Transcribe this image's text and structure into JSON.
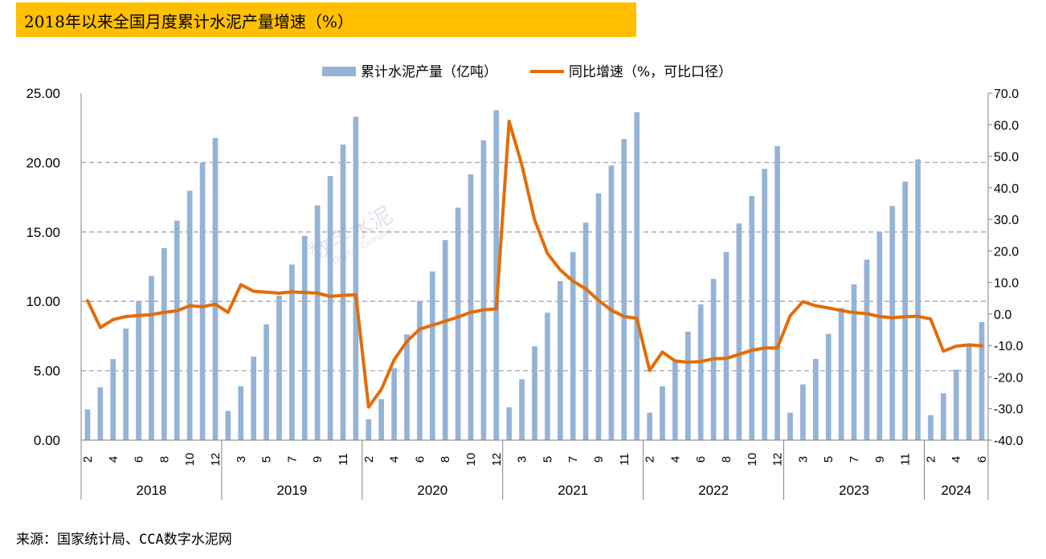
{
  "title": "2018年以来全国月度累计水泥产量增速（%）",
  "source": "来源：国家统计局、CCA数字水泥网",
  "watermark": {
    "main": "数字水泥",
    "sub": "Digital Cement"
  },
  "colors": {
    "bar": "#95B3D7",
    "line": "#E36C09",
    "title_bg": "#FFC000",
    "grid": "#A6A6A6"
  },
  "chart_data": {
    "type": "bar+line",
    "legend": [
      "累计水泥产量（亿吨）",
      "同比增速（%，可比口径）"
    ],
    "legend_position": "top",
    "left_axis": {
      "min": 0,
      "max": 25,
      "ticks": [
        "0.00",
        "5.00",
        "10.00",
        "15.00",
        "20.00",
        "25.00"
      ]
    },
    "right_axis": {
      "min": -40,
      "max": 70,
      "ticks": [
        "-40.0",
        "-30.0",
        "-20.0",
        "-10.0",
        "0.0",
        "10.0",
        "20.0",
        "30.0",
        "40.0",
        "50.0",
        "60.0",
        "70.0"
      ]
    },
    "grid": "dashed horizontal",
    "groups": [
      {
        "year": "2018",
        "months": [
          2,
          3,
          4,
          5,
          6,
          7,
          8,
          9,
          10,
          11,
          12
        ]
      },
      {
        "year": "2019",
        "months": [
          2,
          3,
          4,
          5,
          6,
          7,
          8,
          9,
          10,
          11,
          12
        ]
      },
      {
        "year": "2020",
        "months": [
          2,
          3,
          4,
          5,
          6,
          7,
          8,
          9,
          10,
          11,
          12
        ]
      },
      {
        "year": "2021",
        "months": [
          2,
          3,
          4,
          5,
          6,
          7,
          8,
          9,
          10,
          11,
          12
        ]
      },
      {
        "year": "2022",
        "months": [
          2,
          3,
          4,
          5,
          6,
          7,
          8,
          9,
          10,
          11,
          12
        ]
      },
      {
        "year": "2023",
        "months": [
          2,
          3,
          4,
          5,
          6,
          7,
          8,
          9,
          10,
          11,
          12
        ]
      },
      {
        "year": "2024",
        "months": [
          2,
          3,
          4,
          5,
          6
        ]
      }
    ],
    "series": [
      {
        "name": "累计水泥产量（亿吨）",
        "type": "bar",
        "values": [
          2.21,
          3.81,
          5.84,
          8.04,
          10.04,
          11.83,
          13.84,
          15.82,
          17.97,
          19.99,
          21.77,
          2.1,
          3.88,
          6.02,
          8.34,
          10.42,
          12.65,
          14.71,
          16.91,
          19.03,
          21.3,
          23.3,
          1.5,
          2.95,
          5.19,
          7.62,
          10.05,
          12.15,
          14.41,
          16.75,
          19.15,
          21.6,
          23.77,
          2.36,
          4.39,
          6.76,
          9.18,
          11.46,
          13.56,
          15.67,
          17.78,
          19.79,
          21.7,
          23.63,
          1.98,
          3.88,
          5.73,
          7.82,
          9.78,
          11.62,
          13.55,
          15.61,
          17.6,
          19.55,
          21.18,
          1.99,
          4.02,
          5.85,
          7.66,
          9.52,
          11.22,
          13.01,
          14.99,
          16.87,
          18.63,
          20.23,
          1.8,
          3.38,
          5.08,
          6.76,
          8.51
        ]
      },
      {
        "name": "同比增速（%，可比口径）",
        "type": "line",
        "values": [
          4.2,
          -4.3,
          -1.8,
          -0.8,
          -0.5,
          -0.2,
          0.5,
          1.0,
          2.6,
          2.3,
          3.1,
          0.5,
          9.3,
          7.2,
          6.9,
          6.6,
          7.0,
          6.8,
          6.6,
          5.6,
          5.9,
          6.1,
          -29.5,
          -23.9,
          -14.5,
          -8.7,
          -4.8,
          -3.6,
          -2.3,
          -1.0,
          0.5,
          1.3,
          1.6,
          61.1,
          47.2,
          29.8,
          19.2,
          14.0,
          10.4,
          8.0,
          4.3,
          1.2,
          -0.8,
          -1.4,
          -17.9,
          -12.1,
          -14.9,
          -15.3,
          -15.1,
          -14.2,
          -14.1,
          -12.8,
          -11.5,
          -10.8,
          -10.8,
          -0.6,
          3.9,
          2.6,
          1.9,
          1.1,
          0.4,
          0.1,
          -0.8,
          -1.2,
          -0.9,
          -0.7,
          -1.6,
          -11.8,
          -10.2,
          -9.8,
          -10.1
        ]
      }
    ]
  }
}
